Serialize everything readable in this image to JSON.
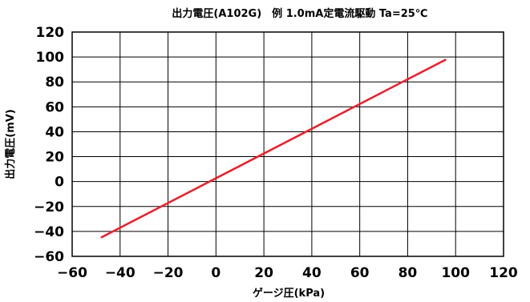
{
  "chart_data": {
    "type": "line",
    "title": "出力電圧(A102G)　例 1.0mA定電流駆動 Ta=25℃",
    "xlabel": "ゲージ圧(kPa)",
    "ylabel": "出力電圧(mV)",
    "xlim": [
      -60,
      120
    ],
    "ylim": [
      -60,
      120
    ],
    "x_ticks": [
      -60,
      -40,
      -20,
      0,
      20,
      40,
      60,
      80,
      100,
      120
    ],
    "y_ticks": [
      -60,
      -40,
      -20,
      0,
      20,
      40,
      60,
      80,
      100,
      120
    ],
    "x_tick_labels": [
      "−60",
      "−40",
      "−20",
      "0",
      "20",
      "40",
      "60",
      "80",
      "100",
      "120"
    ],
    "y_tick_labels": [
      "−60",
      "−40",
      "−20",
      "0",
      "20",
      "40",
      "60",
      "80",
      "100",
      "120"
    ],
    "grid": true,
    "series": [
      {
        "color": "#e8202a",
        "x": [
          -48,
          96
        ],
        "y": [
          -45,
          98
        ]
      }
    ]
  }
}
